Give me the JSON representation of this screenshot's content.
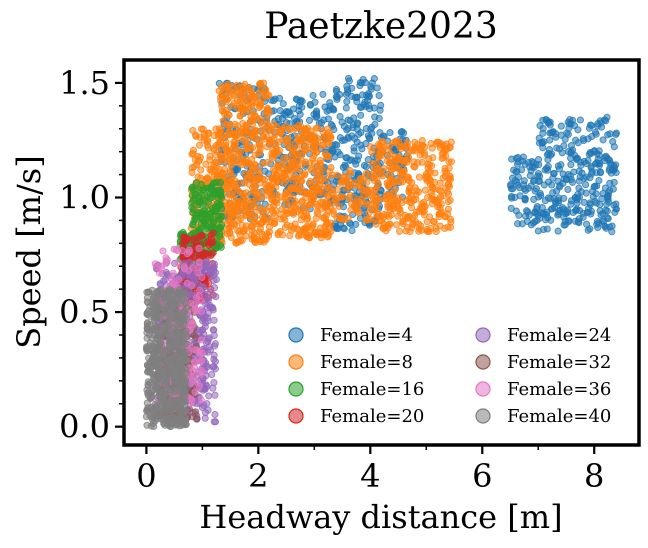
{
  "chart_data": {
    "type": "scatter",
    "title": "Paetzke2023",
    "xlabel": "Headway distance",
    "xlabel_unit": "[m]",
    "ylabel": "Speed",
    "ylabel_unit": "[m/s]",
    "xlim": [
      -0.4,
      8.8
    ],
    "ylim": [
      -0.08,
      1.6
    ],
    "xticks": [
      0,
      2,
      4,
      6,
      8
    ],
    "xtick_labels": [
      "0",
      "2",
      "4",
      "6",
      "8"
    ],
    "yticks": [
      0.0,
      0.5,
      1.0,
      1.5
    ],
    "ytick_labels": [
      "0.0",
      "0.5",
      "1.0",
      "1.5"
    ],
    "grid": false,
    "legend": {
      "placement": "lower-right",
      "columns": 2
    },
    "series": [
      {
        "name": "Female=4",
        "color": "#1f77b4",
        "regions": [
          {
            "x": [
              1.3,
              2.2
            ],
            "y": [
              0.9,
              1.5
            ],
            "n": 160
          },
          {
            "x": [
              2.2,
              3.3
            ],
            "y": [
              0.95,
              1.45
            ],
            "n": 170
          },
          {
            "x": [
              3.3,
              4.2
            ],
            "y": [
              0.85,
              1.52
            ],
            "n": 230
          },
          {
            "x": [
              4.2,
              4.7
            ],
            "y": [
              1.0,
              1.3
            ],
            "n": 50
          },
          {
            "x": [
              6.5,
              7.0
            ],
            "y": [
              0.88,
              1.18
            ],
            "n": 70
          },
          {
            "x": [
              7.0,
              8.4
            ],
            "y": [
              0.85,
              1.35
            ],
            "n": 300
          }
        ]
      },
      {
        "name": "Female=8",
        "color": "#ff7f0e",
        "regions": [
          {
            "x": [
              0.8,
              1.3
            ],
            "y": [
              0.75,
              1.3
            ],
            "n": 170
          },
          {
            "x": [
              1.3,
              2.2
            ],
            "y": [
              0.8,
              1.5
            ],
            "n": 420
          },
          {
            "x": [
              2.2,
              3.3
            ],
            "y": [
              0.82,
              1.32
            ],
            "n": 360
          },
          {
            "x": [
              3.3,
              4.0
            ],
            "y": [
              0.9,
              1.12
            ],
            "n": 70
          },
          {
            "x": [
              4.0,
              5.45
            ],
            "y": [
              0.85,
              1.25
            ],
            "n": 340
          }
        ]
      },
      {
        "name": "Female=16",
        "color": "#2ca02c",
        "regions": [
          {
            "x": [
              0.6,
              1.0
            ],
            "y": [
              0.6,
              0.85
            ],
            "n": 130
          },
          {
            "x": [
              0.8,
              1.35
            ],
            "y": [
              0.75,
              1.07
            ],
            "n": 170
          }
        ]
      },
      {
        "name": "Female=20",
        "color": "#d62728",
        "regions": [
          {
            "x": [
              0.6,
              1.2
            ],
            "y": [
              0.55,
              0.85
            ],
            "n": 140
          }
        ]
      },
      {
        "name": "Female=24",
        "color": "#9467bd",
        "regions": [
          {
            "x": [
              0.15,
              1.25
            ],
            "y": [
              0.02,
              0.72
            ],
            "n": 460
          }
        ]
      },
      {
        "name": "Female=32",
        "color": "#8c564b",
        "regions": [
          {
            "x": [
              0.2,
              0.9
            ],
            "y": [
              0.02,
              0.55
            ],
            "n": 140
          }
        ]
      },
      {
        "name": "Female=36",
        "color": "#e377c2",
        "regions": [
          {
            "x": [
              0.15,
              1.0
            ],
            "y": [
              0.1,
              0.78
            ],
            "n": 150
          }
        ]
      },
      {
        "name": "Female=40",
        "color": "#7f7f7f",
        "regions": [
          {
            "x": [
              0.0,
              0.72
            ],
            "y": [
              0.0,
              0.6
            ],
            "n": 520
          }
        ]
      }
    ]
  }
}
